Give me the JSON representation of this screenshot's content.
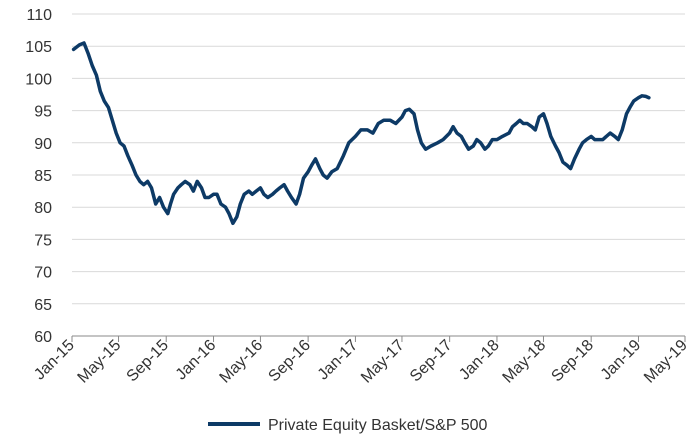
{
  "chart_data": {
    "type": "line",
    "title": "",
    "xlabel": "",
    "ylabel": "",
    "ylim": [
      60,
      110
    ],
    "yticks": [
      60,
      65,
      70,
      75,
      80,
      85,
      90,
      95,
      100,
      105,
      110
    ],
    "ytick_labels": [
      "60",
      "65",
      "70",
      "75",
      "80",
      "85",
      "90",
      "95",
      "100",
      "105",
      "110"
    ],
    "xlim": [
      "2015-01-01",
      "2019-05-01"
    ],
    "xticks": [
      "2015-01-01",
      "2015-05-01",
      "2015-09-01",
      "2016-01-01",
      "2016-05-01",
      "2016-09-01",
      "2017-01-01",
      "2017-05-01",
      "2017-09-01",
      "2018-01-01",
      "2018-05-01",
      "2018-09-01",
      "2019-01-01",
      "2019-05-01"
    ],
    "xtick_labels": [
      "Jan-15",
      "May-15",
      "Sep-15",
      "Jan-16",
      "May-16",
      "Sep-16",
      "Jan-17",
      "May-17",
      "Sep-17",
      "Jan-18",
      "May-18",
      "Sep-18",
      "Jan-19",
      "May-19"
    ],
    "grid": "horizontal",
    "legend_position": "bottom",
    "series": [
      {
        "name": "Private Equity Basket/S&P 500",
        "color": "#0d3a66",
        "x": [
          "2015-01-05",
          "2015-01-20",
          "2015-02-01",
          "2015-02-12",
          "2015-02-22",
          "2015-03-05",
          "2015-03-15",
          "2015-03-25",
          "2015-04-05",
          "2015-04-15",
          "2015-04-25",
          "2015-05-05",
          "2015-05-15",
          "2015-05-25",
          "2015-06-05",
          "2015-06-15",
          "2015-06-25",
          "2015-07-05",
          "2015-07-15",
          "2015-07-25",
          "2015-08-05",
          "2015-08-15",
          "2015-08-25",
          "2015-09-05",
          "2015-09-12",
          "2015-09-20",
          "2015-10-01",
          "2015-10-10",
          "2015-10-20",
          "2015-11-01",
          "2015-11-10",
          "2015-11-20",
          "2015-12-01",
          "2015-12-10",
          "2015-12-20",
          "2016-01-01",
          "2016-01-10",
          "2016-01-20",
          "2016-02-01",
          "2016-02-10",
          "2016-02-20",
          "2016-03-01",
          "2016-03-10",
          "2016-03-20",
          "2016-04-01",
          "2016-04-10",
          "2016-04-20",
          "2016-05-01",
          "2016-05-10",
          "2016-05-20",
          "2016-06-01",
          "2016-06-10",
          "2016-06-20",
          "2016-07-01",
          "2016-07-10",
          "2016-07-20",
          "2016-08-01",
          "2016-08-10",
          "2016-08-20",
          "2016-09-01",
          "2016-09-10",
          "2016-09-20",
          "2016-10-01",
          "2016-10-10",
          "2016-10-20",
          "2016-11-01",
          "2016-11-15",
          "2016-12-01",
          "2016-12-15",
          "2017-01-01",
          "2017-01-15",
          "2017-02-01",
          "2017-02-15",
          "2017-03-01",
          "2017-03-15",
          "2017-04-01",
          "2017-04-15",
          "2017-05-01",
          "2017-05-10",
          "2017-05-20",
          "2017-06-01",
          "2017-06-10",
          "2017-06-20",
          "2017-07-01",
          "2017-07-15",
          "2017-08-01",
          "2017-08-15",
          "2017-09-01",
          "2017-09-10",
          "2017-09-20",
          "2017-10-01",
          "2017-10-10",
          "2017-10-20",
          "2017-11-01",
          "2017-11-10",
          "2017-11-20",
          "2017-12-01",
          "2017-12-10",
          "2017-12-20",
          "2018-01-01",
          "2018-01-15",
          "2018-02-01",
          "2018-02-10",
          "2018-02-20",
          "2018-03-01",
          "2018-03-10",
          "2018-03-20",
          "2018-04-01",
          "2018-04-10",
          "2018-04-20",
          "2018-05-01",
          "2018-05-10",
          "2018-05-20",
          "2018-06-01",
          "2018-06-10",
          "2018-06-20",
          "2018-07-01",
          "2018-07-10",
          "2018-07-20",
          "2018-08-01",
          "2018-08-10",
          "2018-08-20",
          "2018-09-01",
          "2018-09-10",
          "2018-09-20",
          "2018-10-01",
          "2018-10-10",
          "2018-10-20",
          "2018-11-01",
          "2018-11-10",
          "2018-11-20",
          "2018-12-01",
          "2018-12-10",
          "2018-12-20",
          "2019-01-01",
          "2019-01-10",
          "2019-01-20",
          "2019-01-28"
        ],
        "values": [
          104.5,
          105.2,
          105.5,
          103.8,
          102.0,
          100.5,
          98.0,
          96.5,
          95.5,
          93.5,
          91.5,
          90.0,
          89.5,
          88.0,
          86.5,
          85.0,
          84.0,
          83.5,
          84.0,
          83.0,
          80.5,
          81.5,
          80.0,
          79.0,
          80.5,
          82.0,
          83.0,
          83.5,
          84.0,
          83.5,
          82.5,
          84.0,
          83.0,
          81.5,
          81.5,
          82.0,
          82.0,
          80.5,
          80.0,
          79.0,
          77.5,
          78.5,
          80.5,
          82.0,
          82.5,
          82.0,
          82.5,
          83.0,
          82.0,
          81.5,
          82.0,
          82.5,
          83.0,
          83.5,
          82.5,
          81.5,
          80.5,
          82.0,
          84.5,
          85.5,
          86.5,
          87.5,
          86.0,
          85.0,
          84.5,
          85.5,
          86.0,
          88.0,
          90.0,
          91.0,
          92.0,
          92.0,
          91.5,
          93.0,
          93.5,
          93.5,
          93.0,
          94.0,
          95.0,
          95.2,
          94.5,
          92.0,
          90.0,
          89.0,
          89.5,
          90.0,
          90.5,
          91.5,
          92.5,
          91.5,
          91.0,
          90.0,
          89.0,
          89.5,
          90.5,
          90.0,
          89.0,
          89.5,
          90.5,
          90.5,
          91.0,
          91.5,
          92.5,
          93.0,
          93.5,
          93.0,
          93.0,
          92.5,
          92.0,
          94.0,
          94.5,
          93.0,
          91.0,
          89.5,
          88.5,
          87.0,
          86.5,
          86.0,
          87.5,
          89.0,
          90.0,
          90.5,
          91.0,
          90.5,
          90.5,
          90.5,
          91.0,
          91.5,
          91.0,
          90.5,
          92.0,
          94.5,
          95.5,
          96.5,
          97.0,
          97.3,
          97.2,
          97.0
        ]
      }
    ]
  }
}
